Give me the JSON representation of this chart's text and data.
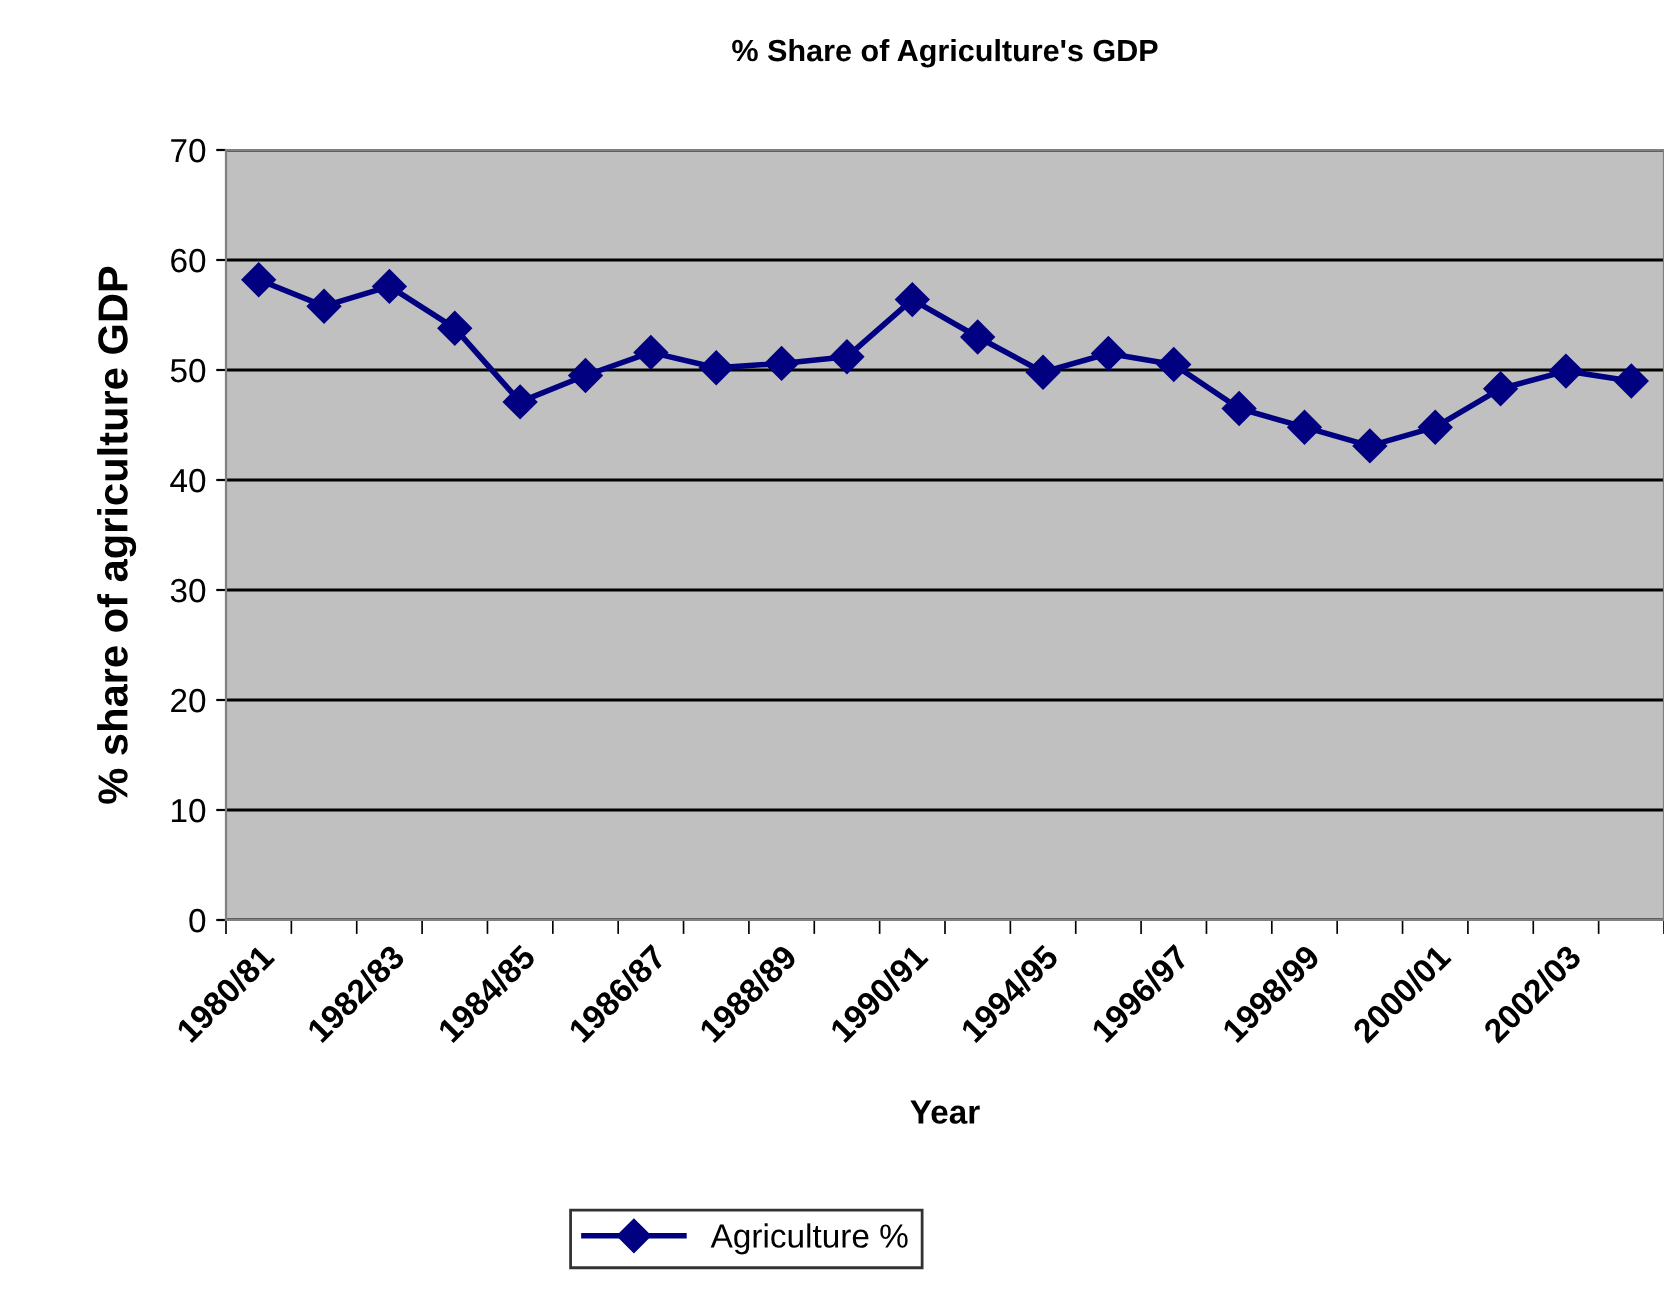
{
  "chart_data": {
    "type": "line",
    "title": "% Share of Agriculture's GDP",
    "xlabel": "Year",
    "ylabel": "% share of agriculture GDP",
    "categories": [
      "1980/81",
      null,
      "1982/83",
      null,
      "1984/85",
      null,
      "1986/87",
      null,
      "1988/89",
      null,
      "1990/91",
      null,
      "1994/95",
      null,
      "1996/97",
      null,
      "1998/99",
      null,
      "2000/01",
      null,
      "2002/03",
      null
    ],
    "series": [
      {
        "name": "Agriculture %",
        "color": "#000080",
        "values": [
          58.2,
          55.8,
          57.6,
          53.8,
          47.1,
          49.5,
          51.6,
          50.2,
          50.6,
          51.2,
          56.4,
          53.0,
          49.8,
          51.5,
          50.5,
          46.5,
          44.8,
          43.1,
          44.8,
          48.3,
          49.9,
          49.0
        ]
      }
    ],
    "ylim": [
      0,
      70
    ],
    "yticks": [
      0,
      10,
      20,
      30,
      40,
      50,
      60,
      70
    ],
    "grid": "y",
    "legend": "bottom",
    "marker": "diamond",
    "line_style": "solid"
  }
}
